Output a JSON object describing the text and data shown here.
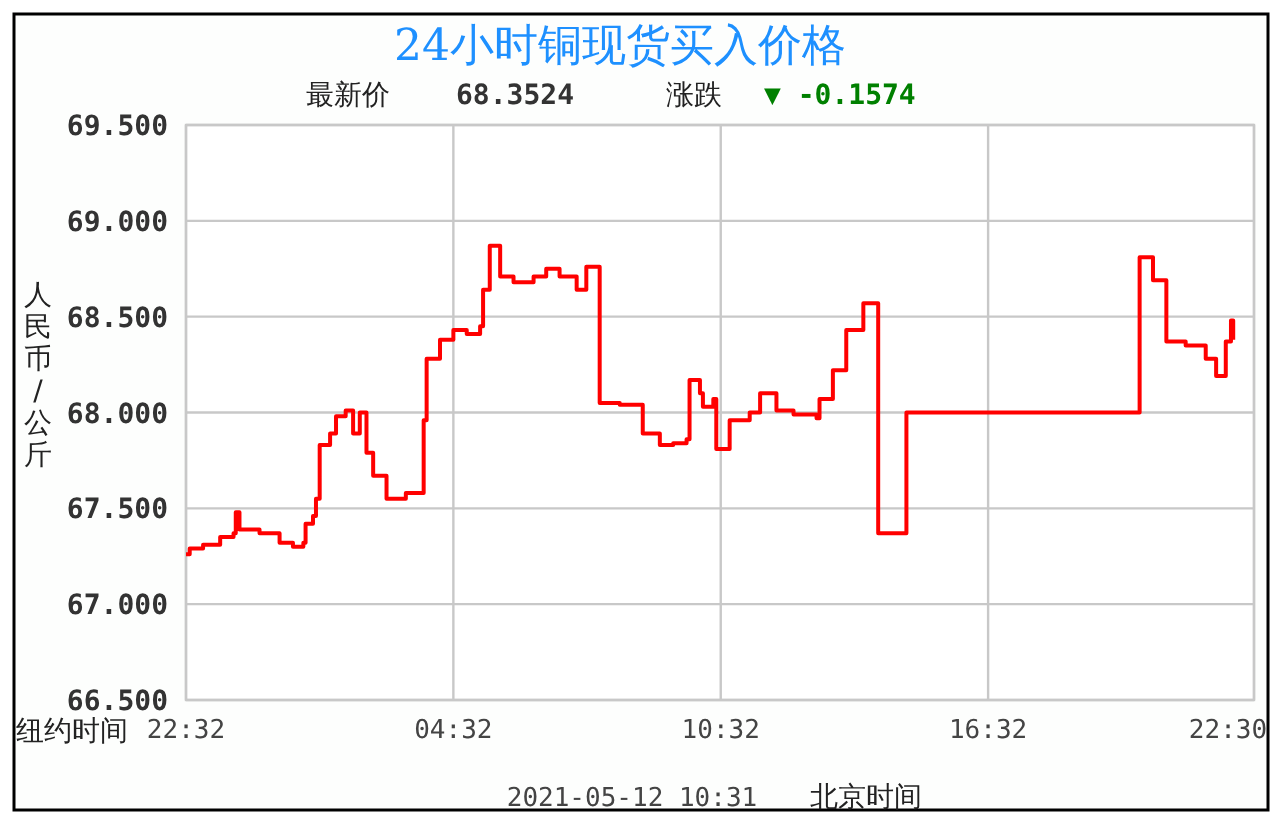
{
  "chart_data": {
    "type": "step",
    "title": "24小时铜现货买入价格",
    "xlabel": "纽约时间",
    "ylabel": "人民币/公斤",
    "annotations": [
      "最新价",
      "68.3524",
      "涨跌",
      "▼ -0.1574",
      "2021-05-12 10:31",
      "北京时间"
    ],
    "xlim": [
      "2021-05-10T22:32",
      "2021-05-11T22:30"
    ],
    "xticks": [
      {
        "value": "2021-05-10T22:32",
        "label": "22:32"
      },
      {
        "value": "2021-05-11T04:32",
        "label": "04:32"
      },
      {
        "value": "2021-05-11T10:32",
        "label": "10:32"
      },
      {
        "value": "2021-05-11T16:32",
        "label": "16:32"
      },
      {
        "value": "2021-05-11T22:30",
        "label": "22:30"
      }
    ],
    "ylim": [
      66.5,
      69.5
    ],
    "yticks": [
      {
        "value": 66.5,
        "label": "66.500"
      },
      {
        "value": 67,
        "label": "67.000"
      },
      {
        "value": 67.5,
        "label": "67.500"
      },
      {
        "value": 68,
        "label": "68.000"
      },
      {
        "value": 68.5,
        "label": "68.500"
      },
      {
        "value": 69,
        "label": "69.000"
      },
      {
        "value": 69.5,
        "label": "69.500"
      }
    ],
    "grid": true,
    "line_style": "solid",
    "series": [
      {
        "color": "#ff0000",
        "x": [
          "2021-05-10T22:32",
          "2021-05-10T22:37",
          "2021-05-10T22:55",
          "2021-05-10T23:18",
          "2021-05-10T23:36",
          "2021-05-10T23:39",
          "2021-05-10T23:44",
          "2021-05-11T00:11",
          "2021-05-11T00:38",
          "2021-05-11T00:56",
          "2021-05-11T01:10",
          "2021-05-11T01:13",
          "2021-05-11T01:23",
          "2021-05-11T01:27",
          "2021-05-11T01:32",
          "2021-05-11T01:46",
          "2021-05-11T01:54",
          "2021-05-11T02:07",
          "2021-05-11T02:17",
          "2021-05-11T02:26",
          "2021-05-11T02:35",
          "2021-05-11T02:44",
          "2021-05-11T03:02",
          "2021-05-11T03:20",
          "2021-05-11T03:28",
          "2021-05-11T03:47",
          "2021-05-11T03:52",
          "2021-05-11T03:56",
          "2021-05-11T04:14",
          "2021-05-11T04:32",
          "2021-05-11T04:50",
          "2021-05-11T05:08",
          "2021-05-11T05:12",
          "2021-05-11T05:21",
          "2021-05-11T05:35",
          "2021-05-11T05:53",
          "2021-05-11T06:20",
          "2021-05-11T06:37",
          "2021-05-11T06:55",
          "2021-05-11T07:18",
          "2021-05-11T07:31",
          "2021-05-11T07:44",
          "2021-05-11T07:49",
          "2021-05-11T08:16",
          "2021-05-11T08:43",
          "2021-05-11T08:47",
          "2021-05-11T09:10",
          "2021-05-11T09:28",
          "2021-05-11T09:46",
          "2021-05-11T09:50",
          "2021-05-11T10:04",
          "2021-05-11T10:08",
          "2021-05-11T10:22",
          "2021-05-11T10:26",
          "2021-05-11T10:44",
          "2021-05-11T11:11",
          "2021-05-11T11:25",
          "2021-05-11T11:47",
          "2021-05-11T12:10",
          "2021-05-11T12:41",
          "2021-05-11T12:45",
          "2021-05-11T13:03",
          "2021-05-11T13:21",
          "2021-05-11T13:44",
          "2021-05-11T14:01",
          "2021-05-11T14:04",
          "2021-05-11T14:37",
          "2021-05-11T14:42",
          "2021-05-11T19:56",
          "2021-05-11T20:14",
          "2021-05-11T20:32",
          "2021-05-11T20:58",
          "2021-05-11T21:25",
          "2021-05-11T21:39",
          "2021-05-11T21:48",
          "2021-05-11T21:52",
          "2021-05-11T21:59",
          "2021-05-11T22:02"
        ],
        "values": [
          67.26,
          67.29,
          67.31,
          67.35,
          67.37,
          67.48,
          67.39,
          67.37,
          67.32,
          67.3,
          67.32,
          67.42,
          67.46,
          67.55,
          67.83,
          67.89,
          67.98,
          68.01,
          67.89,
          68.0,
          67.79,
          67.67,
          67.55,
          67.55,
          67.58,
          67.58,
          67.96,
          68.28,
          68.38,
          68.43,
          68.41,
          68.45,
          68.64,
          68.87,
          68.71,
          68.68,
          68.71,
          68.75,
          68.71,
          68.64,
          68.76,
          68.76,
          68.05,
          68.04,
          68.04,
          67.89,
          67.83,
          67.84,
          67.86,
          68.17,
          68.1,
          68.03,
          68.07,
          67.81,
          67.96,
          68.0,
          68.1,
          68.01,
          67.99,
          67.97,
          68.07,
          68.22,
          68.43,
          68.57,
          68.57,
          67.37,
          67.37,
          68.0,
          68.81,
          68.69,
          68.37,
          68.35,
          68.28,
          68.19,
          68.19,
          68.37,
          68.48,
          68.38
        ]
      }
    ]
  }
}
